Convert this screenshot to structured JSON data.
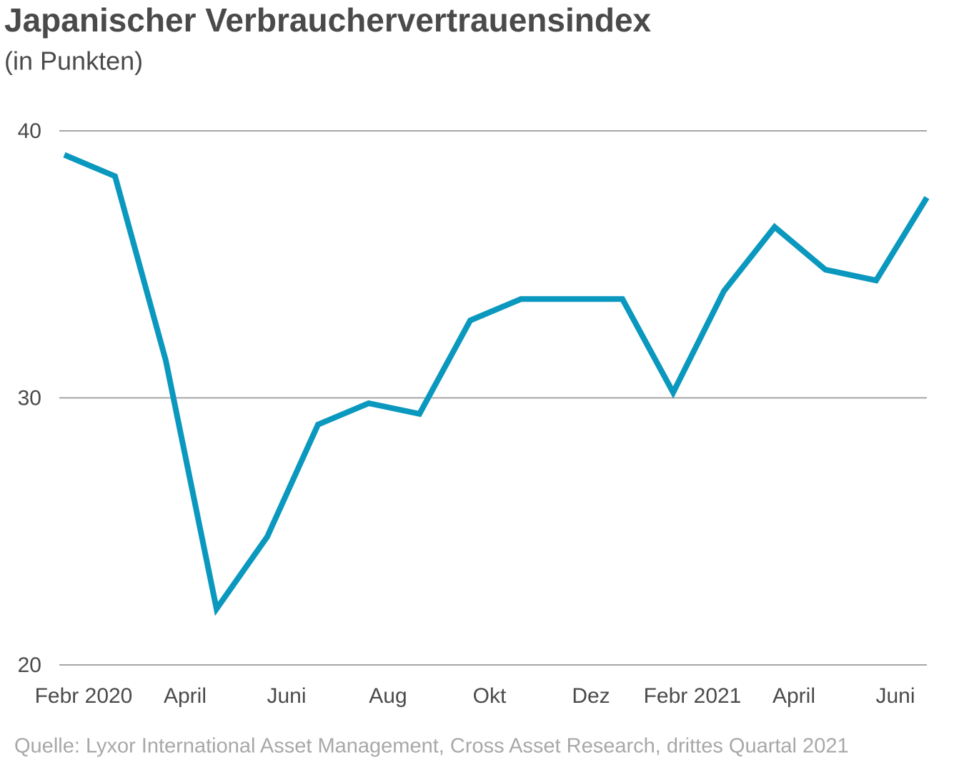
{
  "chart_data": {
    "type": "line",
    "title": "Japanischer Verbrauchervertrauensindex",
    "subtitle": "(in Punkten)",
    "source": "Quelle: Lyxor International Asset Management, Cross Asset Research, drittes Quartal 2021",
    "categories": [
      "Febr 2020",
      null,
      "April",
      null,
      "Juni",
      null,
      "Aug",
      null,
      "Okt",
      null,
      "Dez",
      null,
      "Febr 2021",
      null,
      "April",
      null,
      "Juni",
      null
    ],
    "series": [
      {
        "name": "Verbrauchervertrauensindex",
        "color": "#0a98bf",
        "values": [
          39.1,
          38.3,
          31.4,
          22.1,
          24.8,
          29.0,
          29.8,
          29.4,
          32.9,
          33.7,
          33.7,
          33.7,
          30.2,
          34.0,
          36.4,
          34.8,
          34.4,
          37.5
        ]
      }
    ],
    "ylim": [
      20,
      40
    ],
    "yticks": [
      20,
      30,
      40
    ],
    "grid": true
  }
}
